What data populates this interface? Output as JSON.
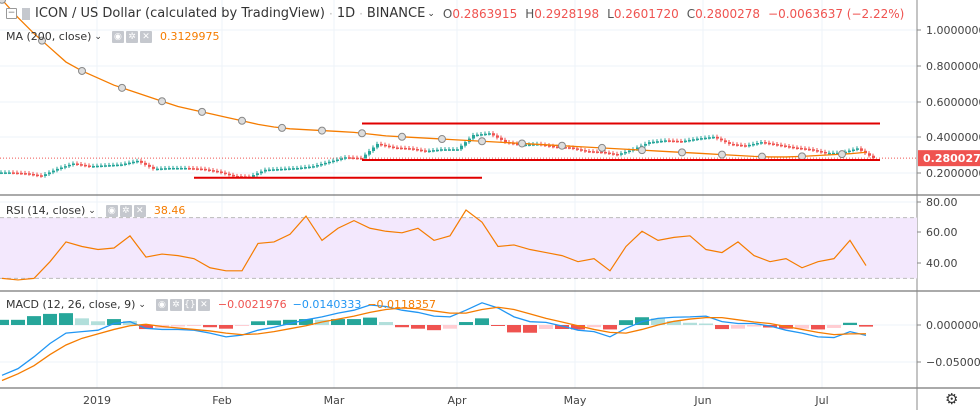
{
  "header": {
    "symbol_title": "ICON / US Dollar (calculated by TradingView)",
    "interval": "1D",
    "exchange": "BINANCE",
    "open_label": "O",
    "open": "0.2863915",
    "high_label": "H",
    "high": "0.2928198",
    "low_label": "L",
    "low": "0.2601720",
    "close_label": "C",
    "close": "0.2800278",
    "change": "−0.0063637 (−2.22%)"
  },
  "indicators": {
    "ma": {
      "label": "MA (200, close)",
      "value": "0.3129975"
    },
    "rsi": {
      "label": "RSI (14, close)",
      "value": "38.46"
    },
    "macd": {
      "label": "MACD (12, 26, close, 9)",
      "hist": "−0.0021976",
      "macd": "−0.0140333",
      "signal": "−0.0118357"
    }
  },
  "colors": {
    "up": "#26a69a",
    "down": "#ef5350",
    "ma": "#f57c00",
    "rsi": "#f57c00",
    "macd": "#2196f3",
    "signal": "#f57c00",
    "rsi_band": "#f3e8fd",
    "drawing": "#e00000"
  },
  "price_axis": {
    "ticks": [
      "1.0000000",
      "0.8000000",
      "0.6000000",
      "0.4000000",
      "0.2000000"
    ],
    "last_price": "0.2800278"
  },
  "rsi_axis": {
    "ticks": [
      "80.00",
      "60.00",
      "40.00"
    ]
  },
  "macd_axis": {
    "ticks": [
      "0.0000000",
      "−0.0500000"
    ]
  },
  "time_axis": {
    "labels": [
      "2019",
      "Feb",
      "Mar",
      "Apr",
      "May",
      "Jun",
      "Jul"
    ]
  },
  "settings_icon": "gear-icon",
  "chart_data": {
    "type": "candlestick",
    "dates": [
      "Dec 8",
      "Dec 12",
      "Dec 16",
      "Dec 20",
      "Dec 24",
      "Dec 28",
      "Jan 1",
      "Jan 5",
      "Jan 9",
      "Jan 13",
      "Jan 17",
      "Jan 21",
      "Jan 25",
      "Jan 29",
      "Feb 2",
      "Feb 6",
      "Feb 10",
      "Feb 14",
      "Feb 18",
      "Feb 22",
      "Feb 26",
      "Mar 2",
      "Mar 6",
      "Mar 10",
      "Mar 14",
      "Mar 18",
      "Mar 22",
      "Mar 26",
      "Mar 30",
      "Apr 3",
      "Apr 7",
      "Apr 11",
      "Apr 15",
      "Apr 19",
      "Apr 23",
      "Apr 27",
      "May 1",
      "May 5",
      "May 9",
      "May 13",
      "May 17",
      "May 21",
      "May 25",
      "May 29",
      "Jun 2",
      "Jun 6",
      "Jun 10",
      "Jun 14",
      "Jun 18",
      "Jun 22",
      "Jun 26",
      "Jun 30",
      "Jul 4",
      "Jul 8",
      "Jul 12"
    ],
    "close": [
      0.2,
      0.195,
      0.18,
      0.22,
      0.25,
      0.235,
      0.24,
      0.245,
      0.265,
      0.22,
      0.225,
      0.225,
      0.22,
      0.205,
      0.18,
      0.175,
      0.215,
      0.22,
      0.225,
      0.235,
      0.26,
      0.285,
      0.28,
      0.36,
      0.34,
      0.335,
      0.32,
      0.33,
      0.33,
      0.41,
      0.42,
      0.37,
      0.355,
      0.36,
      0.345,
      0.34,
      0.32,
      0.315,
      0.3,
      0.33,
      0.37,
      0.38,
      0.375,
      0.39,
      0.4,
      0.36,
      0.35,
      0.37,
      0.355,
      0.34,
      0.33,
      0.31,
      0.31,
      0.335,
      0.28
    ],
    "ma200": [
      1.17,
      1.07,
      0.98,
      0.9,
      0.82,
      0.77,
      0.73,
      0.69,
      0.66,
      0.63,
      0.6,
      0.57,
      0.55,
      0.53,
      0.51,
      0.49,
      0.47,
      0.455,
      0.445,
      0.44,
      0.435,
      0.43,
      0.425,
      0.415,
      0.405,
      0.4,
      0.395,
      0.39,
      0.385,
      0.38,
      0.375,
      0.37,
      0.365,
      0.36,
      0.355,
      0.35,
      0.345,
      0.34,
      0.335,
      0.33,
      0.325,
      0.32,
      0.315,
      0.31,
      0.305,
      0.3,
      0.295,
      0.29,
      0.287,
      0.287,
      0.29,
      0.295,
      0.3,
      0.305,
      0.313
    ],
    "rsi": [
      30,
      29,
      30,
      41,
      54,
      51,
      49,
      50,
      58,
      44,
      46,
      45,
      43,
      37,
      35,
      35,
      53,
      54,
      59,
      71,
      55,
      63,
      68,
      63,
      61,
      60,
      63,
      55,
      58,
      75,
      67,
      51,
      52,
      49,
      47,
      45,
      41,
      43,
      35,
      51,
      61,
      55,
      57,
      58,
      49,
      47,
      54,
      45,
      41,
      43,
      37,
      41,
      43,
      55,
      38.46
    ],
    "rsi_bands": [
      30,
      70
    ],
    "macd": [
      -0.068,
      -0.059,
      -0.043,
      -0.025,
      -0.011,
      -0.009,
      -0.007,
      0.002,
      0.0045,
      -0.0045,
      -0.006,
      -0.006,
      -0.007,
      -0.011,
      -0.016,
      -0.0136,
      -0.007,
      -0.003,
      0.002,
      0.007,
      0.011,
      0.016,
      0.02,
      0.027,
      0.025,
      0.02,
      0.017,
      0.012,
      0.011,
      0.02,
      0.03,
      0.023,
      0.011,
      0.0045,
      0.0036,
      -0.0014,
      -0.007,
      -0.009,
      -0.016,
      -0.0045,
      0.0045,
      0.009,
      0.0105,
      0.011,
      0.012,
      0.0045,
      0.002,
      0.002,
      -0.0014,
      -0.007,
      -0.011,
      -0.016,
      -0.017,
      -0.009,
      -0.014
    ],
    "signal": [
      -0.075,
      -0.066,
      -0.055,
      -0.04,
      -0.027,
      -0.018,
      -0.012,
      -0.006,
      -0.001,
      0.001,
      -0.002,
      -0.004,
      -0.006,
      -0.008,
      -0.011,
      -0.013,
      -0.012,
      -0.009,
      -0.005,
      -0.001,
      0.004,
      0.008,
      0.012,
      0.017,
      0.021,
      0.023,
      0.022,
      0.019,
      0.016,
      0.016,
      0.021,
      0.024,
      0.021,
      0.015,
      0.009,
      0.004,
      -0.001,
      -0.006,
      -0.01,
      -0.011,
      -0.006,
      0,
      0.005,
      0.008,
      0.01,
      0.01,
      0.007,
      0.004,
      0.002,
      -0.002,
      -0.006,
      -0.01,
      -0.013,
      -0.012,
      -0.0118
    ],
    "drawings": [
      {
        "type": "horizontal-line",
        "price": 0.475,
        "from": "Mar 8",
        "to": "Jul 14"
      },
      {
        "type": "horizontal-line",
        "price": 0.27,
        "from": "Mar 8",
        "to": "Jul 14"
      },
      {
        "type": "horizontal-line",
        "price": 0.17,
        "from": "Jan 25",
        "to": "Apr 7"
      }
    ]
  }
}
